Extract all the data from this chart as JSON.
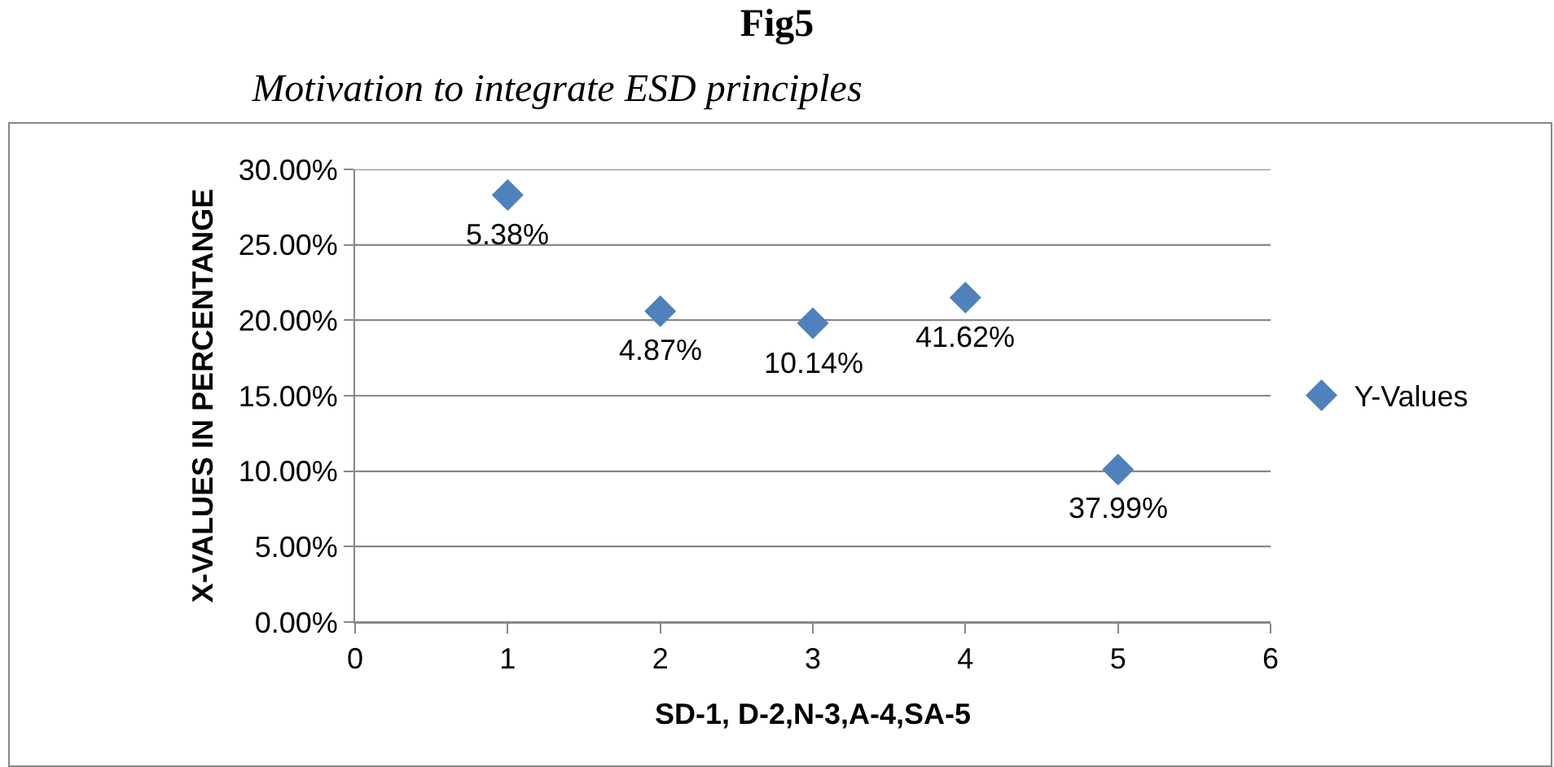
{
  "chart_data": {
    "type": "scatter",
    "title": "Fig5",
    "subtitle": "Motivation to integrate ESD principles",
    "xlabel": "SD-1, D-2,N-3,A-4,SA-5",
    "ylabel": "X-VALUES IN PERCENTANGE",
    "x": [
      1,
      2,
      3,
      4,
      5
    ],
    "series": [
      {
        "name": "Y-Values",
        "color": "#4f81bd",
        "values": [
          28.3,
          20.6,
          19.8,
          21.5,
          10.1
        ]
      }
    ],
    "annotations": [
      {
        "text": "5.38%",
        "x": 1,
        "y": 28.3
      },
      {
        "text": "4.87%",
        "x": 2,
        "y": 20.6
      },
      {
        "text": "10.14%",
        "x": 3,
        "y": 19.8
      },
      {
        "text": "41.62%",
        "x": 4,
        "y": 21.5
      },
      {
        "text": "37.99%",
        "x": 5,
        "y": 10.1
      }
    ],
    "xlim": [
      0,
      6
    ],
    "xticks": [
      0,
      1,
      2,
      3,
      4,
      5,
      6
    ],
    "ylim": [
      0,
      30
    ],
    "yticks": [
      {
        "value": 0,
        "label": "0.00%"
      },
      {
        "value": 5,
        "label": "5.00%"
      },
      {
        "value": 10,
        "label": "10.00%"
      },
      {
        "value": 15,
        "label": "15.00%"
      },
      {
        "value": 20,
        "label": "20.00%"
      },
      {
        "value": 25,
        "label": "25.00%"
      },
      {
        "value": 30,
        "label": "30.00%"
      }
    ],
    "grid": "y",
    "legend": "right",
    "marker": "diamond"
  }
}
